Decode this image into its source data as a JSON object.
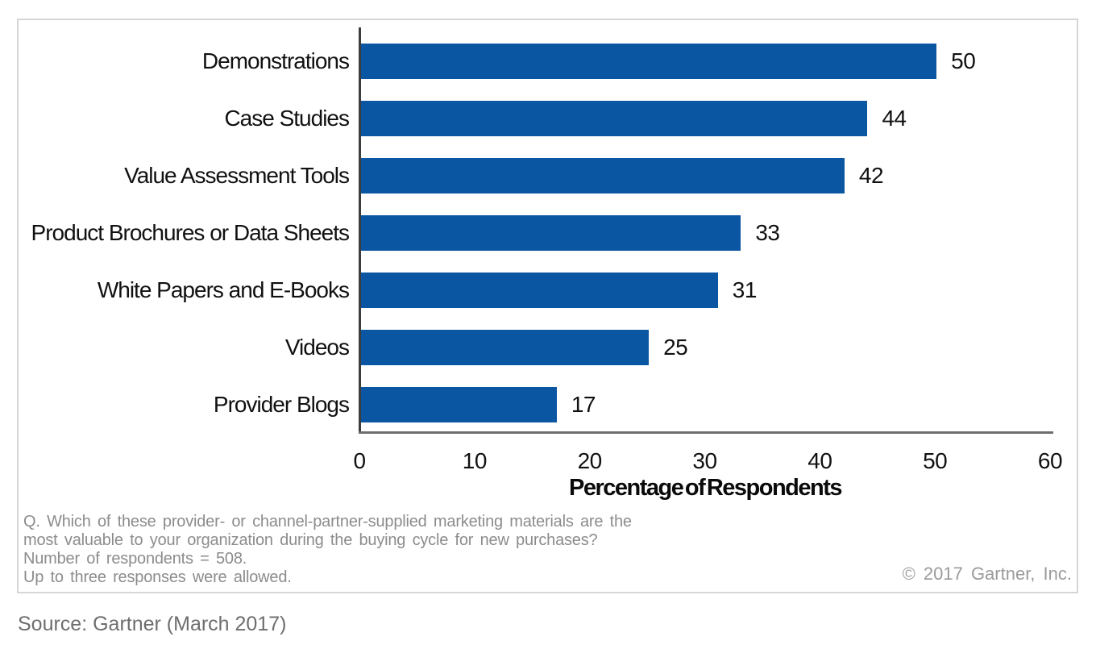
{
  "chart_data": {
    "type": "bar",
    "orientation": "horizontal",
    "categories": [
      "Demonstrations",
      "Case Studies",
      "Value Assessment Tools",
      "Product Brochures or Data Sheets",
      "White Papers and E-Books",
      "Videos",
      "Provider Blogs"
    ],
    "values": [
      50,
      44,
      42,
      33,
      31,
      25,
      17
    ],
    "title": "",
    "xlabel": "Percentage of Respondents",
    "ylabel": "",
    "xlim": [
      0,
      60
    ],
    "xticks": [
      0,
      10,
      20,
      30,
      40,
      50,
      60
    ],
    "grid": false,
    "legend": false,
    "bar_color": "#0b56a2",
    "data_labels": "end-of-bar"
  },
  "footnote": {
    "lines": [
      "Q. Which of these provider- or channel-partner-supplied marketing materials are the",
      "most valuable to your organization during the buying cycle for new purchases?",
      "Number of respondents = 508.",
      "Up to three responses were allowed."
    ]
  },
  "copyright": "© 2017 Gartner, Inc.",
  "source": "Source: Gartner (March 2017)"
}
